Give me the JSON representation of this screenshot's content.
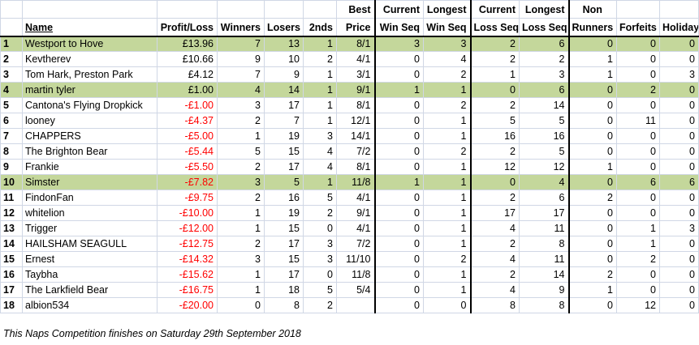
{
  "headers": {
    "name": "Name",
    "profit_loss": "Profit/Loss",
    "winners": "Winners",
    "losers": "Losers",
    "seconds": "2nds",
    "best_price_1": "Best",
    "best_price_2": "Price",
    "current_win_1": "Current",
    "current_win_2": "Win Seq",
    "longest_win_1": "Longest",
    "longest_win_2": "Win Seq",
    "current_loss_1": "Current",
    "current_loss_2": "Loss Seq",
    "longest_loss_1": "Longest",
    "longest_loss_2": "Loss Seq",
    "non_runners_1": "Non",
    "non_runners_2": "Runners",
    "forfeits": "Forfeits",
    "holiday": "Holiday"
  },
  "rows": [
    {
      "pos": "1",
      "name": "Westport to Hove",
      "pl": "£13.96",
      "neg": false,
      "hl": true,
      "w": "7",
      "l": "13",
      "s": "1",
      "bp": "8/1",
      "cws": "3",
      "lws": "3",
      "cls": "2",
      "lls": "6",
      "nr": "0",
      "ff": "0",
      "hol": "0"
    },
    {
      "pos": "2",
      "name": "Kevtherev",
      "pl": "£10.66",
      "neg": false,
      "hl": false,
      "w": "9",
      "l": "10",
      "s": "2",
      "bp": "4/1",
      "cws": "0",
      "lws": "4",
      "cls": "2",
      "lls": "2",
      "nr": "1",
      "ff": "0",
      "hol": "0"
    },
    {
      "pos": "3",
      "name": "Tom Hark, Preston Park",
      "pl": "£4.12",
      "neg": false,
      "hl": false,
      "w": "7",
      "l": "9",
      "s": "1",
      "bp": "3/1",
      "cws": "0",
      "lws": "2",
      "cls": "1",
      "lls": "3",
      "nr": "1",
      "ff": "0",
      "hol": "3"
    },
    {
      "pos": "4",
      "name": "martin tyler",
      "pl": "£1.00",
      "neg": false,
      "hl": true,
      "w": "4",
      "l": "14",
      "s": "1",
      "bp": "9/1",
      "cws": "1",
      "lws": "1",
      "cls": "0",
      "lls": "6",
      "nr": "0",
      "ff": "2",
      "hol": "0"
    },
    {
      "pos": "5",
      "name": "Cantona's Flying Dropkick",
      "pl": "-£1.00",
      "neg": true,
      "hl": false,
      "w": "3",
      "l": "17",
      "s": "1",
      "bp": "8/1",
      "cws": "0",
      "lws": "2",
      "cls": "2",
      "lls": "14",
      "nr": "0",
      "ff": "0",
      "hol": "0"
    },
    {
      "pos": "6",
      "name": "looney",
      "pl": "-£4.37",
      "neg": true,
      "hl": false,
      "w": "2",
      "l": "7",
      "s": "1",
      "bp": "12/1",
      "cws": "0",
      "lws": "1",
      "cls": "5",
      "lls": "5",
      "nr": "0",
      "ff": "11",
      "hol": "0"
    },
    {
      "pos": "7",
      "name": "CHAPPERS",
      "pl": "-£5.00",
      "neg": true,
      "hl": false,
      "w": "1",
      "l": "19",
      "s": "3",
      "bp": "14/1",
      "cws": "0",
      "lws": "1",
      "cls": "16",
      "lls": "16",
      "nr": "0",
      "ff": "0",
      "hol": "0"
    },
    {
      "pos": "8",
      "name": "The Brighton Bear",
      "pl": "-£5.44",
      "neg": true,
      "hl": false,
      "w": "5",
      "l": "15",
      "s": "4",
      "bp": "7/2",
      "cws": "0",
      "lws": "2",
      "cls": "2",
      "lls": "5",
      "nr": "0",
      "ff": "0",
      "hol": "0"
    },
    {
      "pos": "9",
      "name": "Frankie",
      "pl": "-£5.50",
      "neg": true,
      "hl": false,
      "w": "2",
      "l": "17",
      "s": "4",
      "bp": "8/1",
      "cws": "0",
      "lws": "1",
      "cls": "12",
      "lls": "12",
      "nr": "1",
      "ff": "0",
      "hol": "0"
    },
    {
      "pos": "10",
      "name": "Simster",
      "pl": "-£7.82",
      "neg": true,
      "hl": true,
      "w": "3",
      "l": "5",
      "s": "1",
      "bp": "11/8",
      "cws": "1",
      "lws": "1",
      "cls": "0",
      "lls": "4",
      "nr": "0",
      "ff": "6",
      "hol": "6"
    },
    {
      "pos": "11",
      "name": "FindonFan",
      "pl": "-£9.75",
      "neg": true,
      "hl": false,
      "w": "2",
      "l": "16",
      "s": "5",
      "bp": "4/1",
      "cws": "0",
      "lws": "1",
      "cls": "2",
      "lls": "6",
      "nr": "2",
      "ff": "0",
      "hol": "0"
    },
    {
      "pos": "12",
      "name": "whitelion",
      "pl": "-£10.00",
      "neg": true,
      "hl": false,
      "w": "1",
      "l": "19",
      "s": "2",
      "bp": "9/1",
      "cws": "0",
      "lws": "1",
      "cls": "17",
      "lls": "17",
      "nr": "0",
      "ff": "0",
      "hol": "0"
    },
    {
      "pos": "13",
      "name": "Trigger",
      "pl": "-£12.00",
      "neg": true,
      "hl": false,
      "w": "1",
      "l": "15",
      "s": "0",
      "bp": "4/1",
      "cws": "0",
      "lws": "1",
      "cls": "4",
      "lls": "11",
      "nr": "0",
      "ff": "1",
      "hol": "3"
    },
    {
      "pos": "14",
      "name": "HAILSHAM SEAGULL",
      "pl": "-£12.75",
      "neg": true,
      "hl": false,
      "w": "2",
      "l": "17",
      "s": "3",
      "bp": "7/2",
      "cws": "0",
      "lws": "1",
      "cls": "2",
      "lls": "8",
      "nr": "0",
      "ff": "1",
      "hol": "0"
    },
    {
      "pos": "15",
      "name": "Ernest",
      "pl": "-£14.32",
      "neg": true,
      "hl": false,
      "w": "3",
      "l": "15",
      "s": "3",
      "bp": "11/10",
      "cws": "0",
      "lws": "2",
      "cls": "4",
      "lls": "11",
      "nr": "0",
      "ff": "2",
      "hol": "0"
    },
    {
      "pos": "16",
      "name": "Taybha",
      "pl": "-£15.62",
      "neg": true,
      "hl": false,
      "w": "1",
      "l": "17",
      "s": "0",
      "bp": "11/8",
      "cws": "0",
      "lws": "1",
      "cls": "2",
      "lls": "14",
      "nr": "2",
      "ff": "0",
      "hol": "0"
    },
    {
      "pos": "17",
      "name": "The Larkfield Bear",
      "pl": "-£16.75",
      "neg": true,
      "hl": false,
      "w": "1",
      "l": "18",
      "s": "5",
      "bp": "5/4",
      "cws": "0",
      "lws": "1",
      "cls": "4",
      "lls": "9",
      "nr": "1",
      "ff": "0",
      "hol": "0"
    },
    {
      "pos": "18",
      "name": "albion534",
      "pl": "-£20.00",
      "neg": true,
      "hl": false,
      "w": "0",
      "l": "8",
      "s": "2",
      "bp": "",
      "cws": "0",
      "lws": "0",
      "cls": "8",
      "lls": "8",
      "nr": "0",
      "ff": "12",
      "hol": "0"
    }
  ],
  "footer": "This Naps Competition finishes on Saturday 29th September 2018",
  "colors": {
    "highlight": "#c4d79b",
    "negative": "#ff0000"
  }
}
